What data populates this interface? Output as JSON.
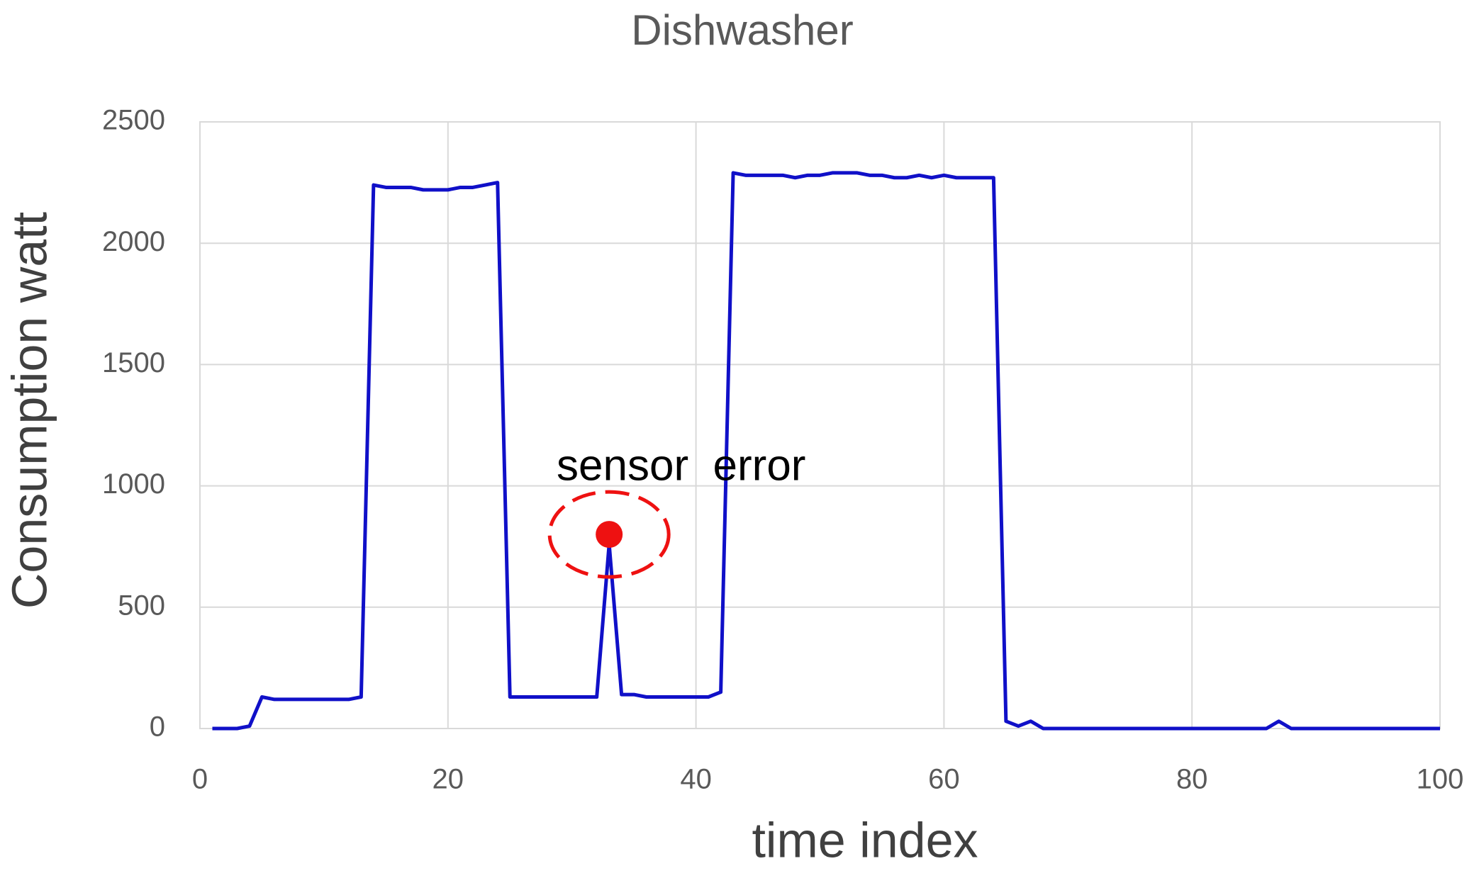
{
  "chart_data": {
    "type": "line",
    "title": "Dishwasher",
    "x_label": "time index",
    "y_label": "Consumption watt",
    "series": [
      {
        "name": "Dishwasher",
        "color": "#1010c8",
        "x": [
          1,
          2,
          3,
          4,
          5,
          6,
          7,
          8,
          9,
          10,
          11,
          12,
          13,
          14,
          15,
          16,
          17,
          18,
          19,
          20,
          21,
          22,
          23,
          24,
          25,
          26,
          27,
          28,
          29,
          30,
          31,
          32,
          33,
          34,
          35,
          36,
          37,
          38,
          39,
          40,
          41,
          42,
          43,
          44,
          45,
          46,
          47,
          48,
          49,
          50,
          51,
          52,
          53,
          54,
          55,
          56,
          57,
          58,
          59,
          60,
          61,
          62,
          63,
          64,
          65,
          66,
          67,
          68,
          69,
          70,
          71,
          72,
          73,
          74,
          75,
          76,
          77,
          78,
          79,
          80,
          81,
          82,
          83,
          84,
          85,
          86,
          87,
          88,
          89,
          90,
          91,
          92,
          93,
          94,
          95,
          96,
          97,
          98,
          99,
          100
        ],
        "values": [
          0,
          0,
          0,
          10,
          130,
          120,
          120,
          120,
          120,
          120,
          120,
          120,
          130,
          2240,
          2230,
          2230,
          2230,
          2220,
          2220,
          2220,
          2230,
          2230,
          2240,
          2250,
          130,
          130,
          130,
          130,
          130,
          130,
          130,
          130,
          760,
          140,
          140,
          130,
          130,
          130,
          130,
          130,
          130,
          150,
          2290,
          2280,
          2280,
          2280,
          2280,
          2270,
          2280,
          2280,
          2290,
          2290,
          2290,
          2280,
          2280,
          2270,
          2270,
          2280,
          2270,
          2280,
          2270,
          2270,
          2270,
          2270,
          30,
          10,
          30,
          0,
          0,
          0,
          0,
          0,
          0,
          0,
          0,
          0,
          0,
          0,
          0,
          0,
          0,
          0,
          0,
          0,
          0,
          0,
          30,
          0,
          0,
          0,
          0,
          0,
          0,
          0,
          0,
          0,
          0,
          0,
          0,
          0
        ]
      }
    ],
    "annotation": {
      "text": "sensor  error",
      "x": 33,
      "y": 800,
      "color": "#ee1111"
    },
    "xlim": [
      0,
      100
    ],
    "xticks": [
      0,
      20,
      40,
      60,
      80,
      100
    ],
    "ylim": [
      0,
      2500
    ],
    "yticks": [
      0,
      500,
      1000,
      1500,
      2000,
      2500
    ],
    "grid": true
  }
}
